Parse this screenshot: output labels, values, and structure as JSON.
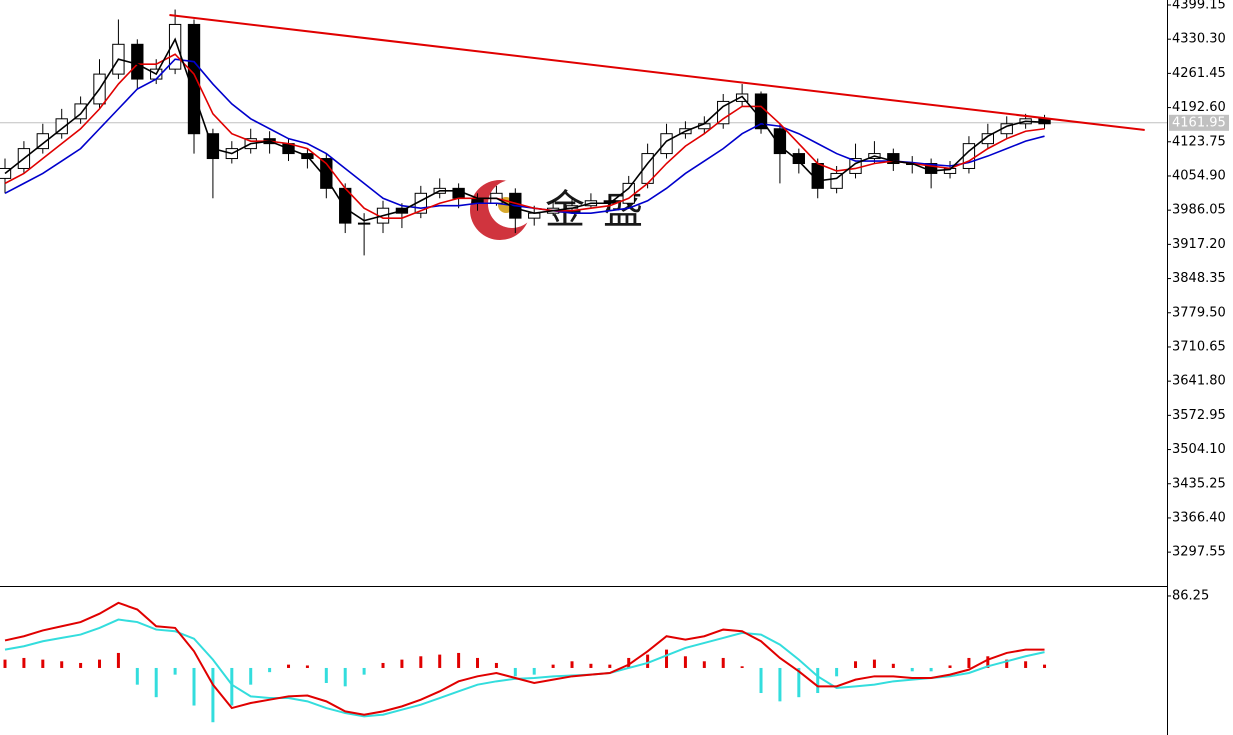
{
  "chart_data": [
    {
      "type": "candlestick",
      "xlim": [
        -0.265,
        61.48
      ],
      "ylim": [
        3231.4,
        4409.2
      ],
      "yticks": [
        4399.15,
        {
          "value": 4330.3,
          "label": "4330.30"
        },
        4261.45,
        {
          "value": 4192.6,
          "label": "4192.60"
        },
        4123.75,
        {
          "value": 4054.9,
          "label": "4054.90"
        },
        3986.05,
        {
          "value": 3917.2,
          "label": "3917.20"
        },
        3848.35,
        {
          "value": 3779.5,
          "label": "3779.50"
        },
        3710.65,
        {
          "value": 3641.8,
          "label": "3641.80"
        },
        3572.95,
        {
          "value": 3504.1,
          "label": "3504.10"
        },
        3435.25,
        {
          "value": 3366.4,
          "label": "3366.40"
        },
        3297.55
      ],
      "up_color": "#ffffff",
      "down_color": "#000000",
      "x": [
        0,
        1,
        2,
        3,
        4,
        5,
        6,
        7,
        8,
        9,
        10,
        11,
        12,
        13,
        14,
        15,
        16,
        17,
        18,
        19,
        20,
        21,
        22,
        23,
        24,
        25,
        26,
        27,
        28,
        29,
        30,
        31,
        32,
        33,
        34,
        35,
        36,
        37,
        38,
        39,
        40,
        41,
        42,
        43,
        44,
        45,
        46,
        47,
        48,
        49,
        50,
        51,
        52,
        53,
        54,
        55
      ],
      "open": [
        4050,
        4070,
        4110,
        4140,
        4170,
        4200,
        4260,
        4320,
        4250,
        4270,
        4360,
        4140,
        4090,
        4110,
        4130,
        4120,
        4100,
        4090,
        4030,
        3960,
        3960,
        3990,
        3980,
        4020,
        4030,
        4010,
        4000,
        4020,
        3970,
        3980,
        3990,
        3995,
        4005,
        4000,
        4040,
        4100,
        4140,
        4150,
        4160,
        4205,
        4220,
        4150,
        4100,
        4080,
        4030,
        4060,
        4090,
        4100,
        4080,
        4080,
        4060,
        4070,
        4120,
        4140,
        4160,
        4170
      ],
      "high": [
        4090,
        4125,
        4160,
        4190,
        4215,
        4290,
        4370,
        4330,
        4290,
        4390,
        4370,
        4150,
        4125,
        4150,
        4145,
        4130,
        4110,
        4100,
        4040,
        3980,
        4005,
        4000,
        4035,
        4050,
        4040,
        4020,
        4035,
        4030,
        3995,
        4005,
        4010,
        4020,
        4015,
        4055,
        4120,
        4160,
        4165,
        4175,
        4220,
        4240,
        4225,
        4160,
        4110,
        4090,
        4075,
        4120,
        4125,
        4110,
        4095,
        4090,
        4085,
        4135,
        4160,
        4175,
        4180,
        4178
      ],
      "low": [
        4020,
        4060,
        4100,
        4130,
        4160,
        4190,
        4250,
        4230,
        4240,
        4260,
        4100,
        4010,
        4080,
        4100,
        4100,
        4085,
        4070,
        4010,
        3940,
        3895,
        3940,
        3950,
        3970,
        4010,
        3990,
        3985,
        3995,
        3940,
        3955,
        3975,
        3980,
        3990,
        3985,
        3990,
        4030,
        4090,
        4130,
        4140,
        4150,
        4195,
        4140,
        4040,
        4060,
        4010,
        4020,
        4050,
        4080,
        4065,
        4060,
        4030,
        4050,
        4060,
        4110,
        4130,
        4150,
        4150
      ],
      "close": [
        4070,
        4110,
        4140,
        4170,
        4200,
        4260,
        4320,
        4250,
        4270,
        4360,
        4140,
        4090,
        4110,
        4130,
        4120,
        4100,
        4090,
        4030,
        3960,
        3960,
        3990,
        3980,
        4020,
        4030,
        4010,
        4000,
        4020,
        3970,
        3980,
        3990,
        3995,
        4005,
        4000,
        4040,
        4100,
        4140,
        4150,
        4160,
        4205,
        4220,
        4150,
        4100,
        4080,
        4030,
        4060,
        4090,
        4100,
        4080,
        4080,
        4060,
        4070,
        4120,
        4140,
        4160,
        4170,
        4160
      ],
      "series": [
        {
          "color": "#0000cc",
          "values": [
            4020,
            4040,
            4060,
            4085,
            4110,
            4150,
            4190,
            4230,
            4250,
            4290,
            4285,
            4240,
            4200,
            4170,
            4150,
            4130,
            4120,
            4100,
            4070,
            4040,
            4010,
            3995,
            3990,
            3995,
            3995,
            4000,
            4000,
            3995,
            3990,
            3985,
            3980,
            3980,
            3985,
            3990,
            4005,
            4030,
            4060,
            4085,
            4110,
            4140,
            4160,
            4155,
            4140,
            4120,
            4100,
            4085,
            4085,
            4085,
            4082,
            4078,
            4075,
            4082,
            4095,
            4110,
            4125,
            4135
          ]
        },
        {
          "color": "#e00000",
          "values": [
            4040,
            4060,
            4090,
            4120,
            4150,
            4190,
            4240,
            4280,
            4280,
            4300,
            4260,
            4180,
            4140,
            4125,
            4125,
            4120,
            4110,
            4080,
            4030,
            3990,
            3970,
            3970,
            3985,
            4000,
            4010,
            4010,
            4010,
            4000,
            3990,
            3985,
            3985,
            3990,
            3995,
            4010,
            4040,
            4080,
            4115,
            4140,
            4170,
            4195,
            4195,
            4160,
            4120,
            4080,
            4065,
            4070,
            4080,
            4085,
            4080,
            4075,
            4070,
            4085,
            4110,
            4130,
            4145,
            4150
          ]
        },
        {
          "color": "#000000",
          "values": [
            4060,
            4090,
            4120,
            4150,
            4180,
            4230,
            4290,
            4280,
            4260,
            4330,
            4220,
            4110,
            4100,
            4120,
            4125,
            4110,
            4095,
            4050,
            3990,
            3965,
            3975,
            3985,
            4005,
            4025,
            4025,
            4010,
            4010,
            3990,
            3980,
            3985,
            3990,
            4000,
            4000,
            4030,
            4080,
            4125,
            4145,
            4160,
            4195,
            4215,
            4170,
            4115,
            4085,
            4045,
            4050,
            4080,
            4095,
            4085,
            4080,
            4065,
            4068,
            4105,
            4135,
            4155,
            4165,
            4163
          ]
        }
      ],
      "trendline": {
        "color": "#e00000",
        "x": [
          8.7,
          60.3
        ],
        "values": [
          4379,
          4147.5
        ]
      },
      "last_price": 4161.95,
      "watermark": "金盛"
    },
    {
      "type": "macd",
      "ylim": [
        -80.3,
        95.8
      ],
      "yticks": [
        86.25
      ],
      "macd": {
        "color": "#e00000",
        "values": [
          33,
          38,
          45,
          50,
          55,
          65,
          78,
          70,
          50,
          48,
          20,
          -20,
          -48,
          -42,
          -38,
          -34,
          -33,
          -40,
          -52,
          -56,
          -52,
          -46,
          -38,
          -28,
          -16,
          -10,
          -6,
          -12,
          -18,
          -14,
          -10,
          -8,
          -6,
          4,
          20,
          38,
          34,
          38,
          46,
          44,
          32,
          12,
          -4,
          -22,
          -22,
          -14,
          -10,
          -10,
          -12,
          -12,
          -8,
          -2,
          10,
          18,
          22,
          22
        ]
      },
      "signal": {
        "color": "#33dddd",
        "values": [
          22,
          26,
          32,
          36,
          40,
          48,
          58,
          55,
          46,
          44,
          35,
          10,
          -20,
          -34,
          -36,
          -36,
          -40,
          -48,
          -54,
          -58,
          -56,
          -50,
          -44,
          -36,
          -28,
          -20,
          -16,
          -13,
          -12,
          -10,
          -9,
          -8,
          -6,
          0,
          6,
          15,
          24,
          30,
          36,
          42,
          40,
          28,
          10,
          -10,
          -24,
          -22,
          -20,
          -16,
          -14,
          -12,
          -10,
          -6,
          2,
          8,
          14,
          19
        ]
      },
      "histogram": {
        "up_color": "#e00000",
        "down_color": "#33dddd",
        "values": [
          10,
          12,
          10,
          8,
          6,
          10,
          18,
          -20,
          -35,
          -8,
          -45,
          -65,
          -45,
          -20,
          -5,
          4,
          3,
          -18,
          -22,
          -8,
          6,
          10,
          14,
          16,
          18,
          12,
          6,
          -10,
          -8,
          4,
          8,
          5,
          4,
          12,
          16,
          22,
          14,
          8,
          12,
          2,
          -30,
          -40,
          -35,
          -30,
          -10,
          8,
          10,
          5,
          -4,
          -4,
          3,
          12,
          14,
          10,
          8,
          4
        ]
      }
    }
  ]
}
